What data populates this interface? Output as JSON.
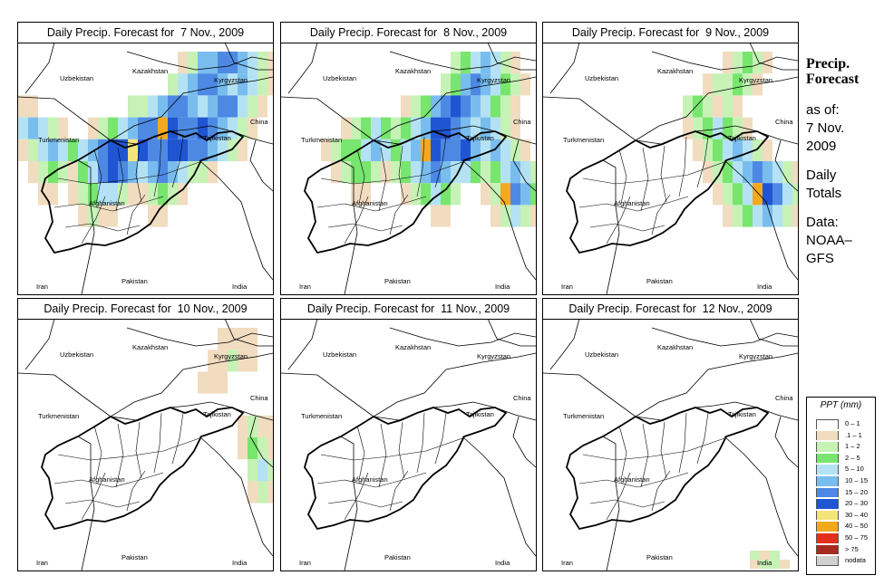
{
  "panels": [
    {
      "title": "Daily Precip. Forecast for  7 Nov., 2009",
      "level": 3
    },
    {
      "title": "Daily Precip. Forecast for  8 Nov., 2009",
      "level": 3
    },
    {
      "title": "Daily Precip. Forecast for  9 Nov., 2009",
      "level": 2
    },
    {
      "title": "Daily Precip. Forecast for  10 Nov., 2009",
      "level": 1
    },
    {
      "title": "Daily Precip. Forecast for  11 Nov., 2009",
      "level": 0
    },
    {
      "title": "Daily Precip. Forecast for  12 Nov., 2009",
      "level": 0
    }
  ],
  "map_labels": [
    "Uzbekistan",
    "Kazakhstan",
    "Kyrgyzstan",
    "Turkmenistan",
    "Tajikistan",
    "China",
    "Afghanistan",
    "Pakistan",
    "Iran",
    "India"
  ],
  "sidebar": {
    "title_line1": "Precip.",
    "title_line2": "Forecast",
    "as_of": "as of:",
    "date_line1": "7 Nov.",
    "date_line2": "2009",
    "totals_line1": "Daily",
    "totals_line2": "Totals",
    "data_line1": "Data:",
    "data_line2": "NOAA–",
    "data_line3": "GFS"
  },
  "legend": {
    "title": "PPT (mm)",
    "items": [
      {
        "label": "0 – 1",
        "color": "#ffffff"
      },
      {
        "label": ".1 – 1",
        "color": "#f1dcc0"
      },
      {
        "label": "1 – 2",
        "color": "#c6f2b6"
      },
      {
        "label": "2 – 5",
        "color": "#78e56e"
      },
      {
        "label": "5 – 10",
        "color": "#b4e2f4"
      },
      {
        "label": "10 – 15",
        "color": "#79bdee"
      },
      {
        "label": "15 – 20",
        "color": "#4d89e3"
      },
      {
        "label": "20 – 30",
        "color": "#1f55d2"
      },
      {
        "label": "30 – 40",
        "color": "#f4e47a"
      },
      {
        "label": "40 – 50",
        "color": "#f3a81d"
      },
      {
        "label": "50 – 75",
        "color": "#e2301a"
      },
      {
        "label": "> 75",
        "color": "#a52a1f"
      },
      {
        "label": "nodata",
        "color": "#d0d0d0"
      }
    ]
  }
}
